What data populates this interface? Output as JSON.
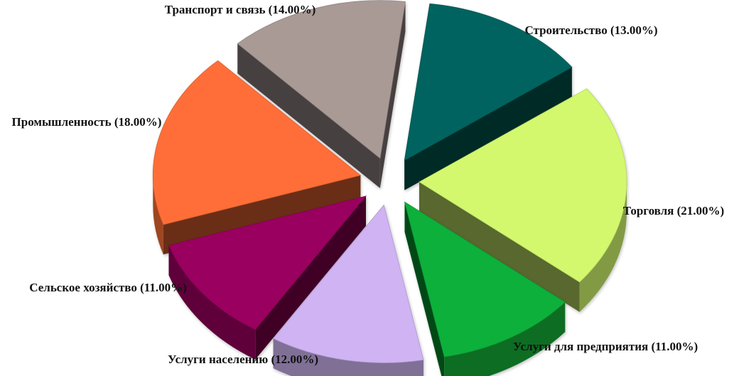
{
  "chart_data": {
    "type": "pie",
    "style": "3d-exploded",
    "title": "",
    "slices": [
      {
        "name": "Строительство",
        "value": 13.0,
        "label": "Строительство (13.00%)",
        "color": "#00645F"
      },
      {
        "name": "Торговля",
        "value": 21.0,
        "label": "Торговля (21.00%)",
        "color": "#D3F86E"
      },
      {
        "name": "Услуги для предприятия",
        "value": 11.0,
        "label": "Услуги для предприятия (11.00%)",
        "color": "#0CB03A"
      },
      {
        "name": "Услуги населению",
        "value": 12.0,
        "label": "Услуги населению (12.00%)",
        "color": "#CFB3F2"
      },
      {
        "name": "Сельское хозяйство",
        "value": 11.0,
        "label": "Сельское хозяйство (11.00%)",
        "color": "#99005E"
      },
      {
        "name": "Промышленность",
        "value": 18.0,
        "label": "Промышленность (18.00%)",
        "color": "#FF6E37"
      },
      {
        "name": "Транспорт и связь",
        "value": 14.0,
        "label": "Транспорт и связь (14.00%)",
        "color": "#A99A96"
      }
    ],
    "legend": "none"
  }
}
